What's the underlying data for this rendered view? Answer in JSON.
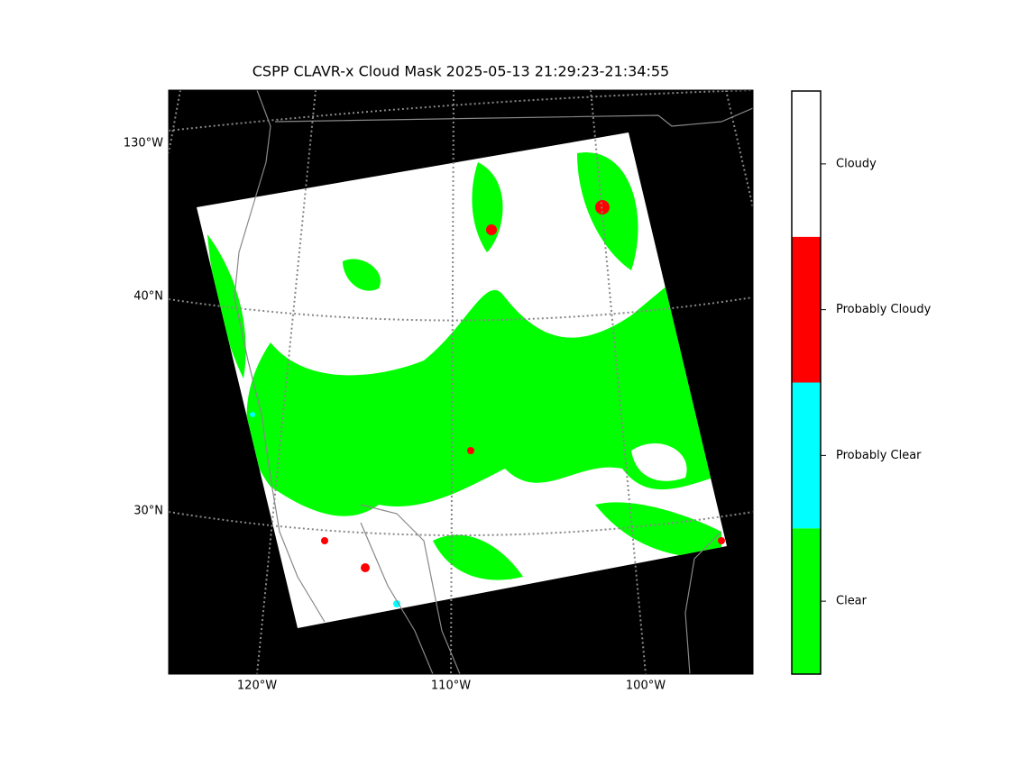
{
  "title": "CSPP CLAVR-x Cloud Mask 2025-05-13 21:29:23-21:34:55",
  "map": {
    "left_labels": [
      "130°W",
      "40°N",
      "30°N"
    ],
    "bottom_labels": [
      "120°W",
      "110°W",
      "100°W"
    ]
  },
  "colorbar": {
    "classes": [
      {
        "label": "Clear",
        "color": "#00ff00"
      },
      {
        "label": "Probably Clear",
        "color": "#00ffff"
      },
      {
        "label": "Probably Cloudy",
        "color": "#ff0000"
      },
      {
        "label": "Cloudy",
        "color": "#ffffff"
      }
    ]
  }
}
